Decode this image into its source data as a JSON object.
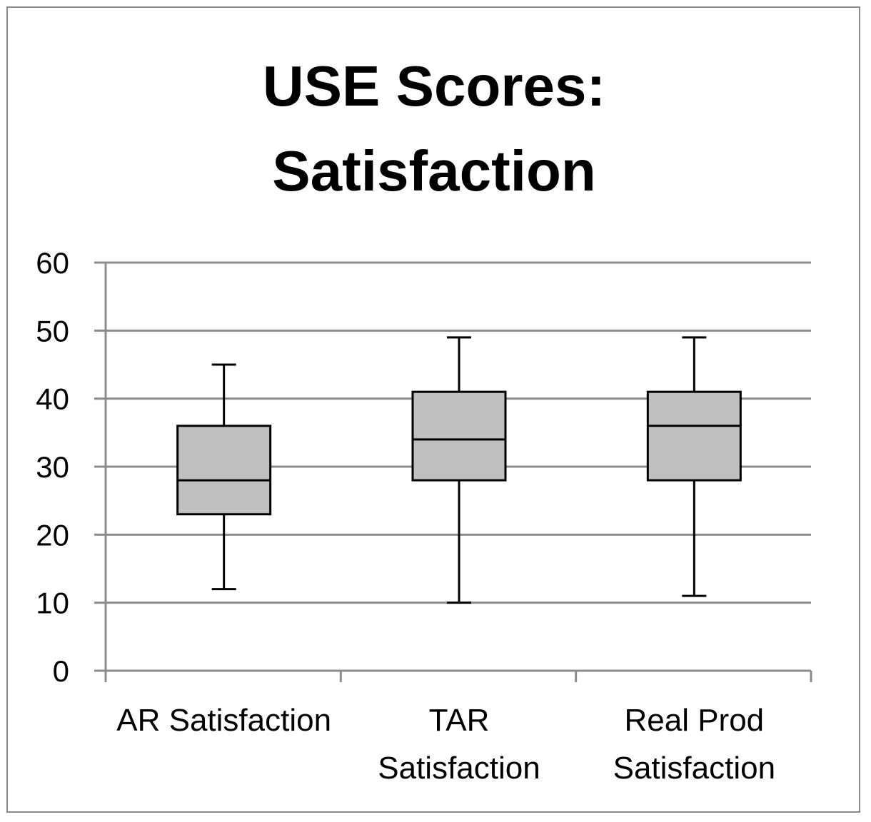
{
  "chart_data": {
    "type": "box",
    "title": [
      "USE Scores:",
      "Satisfaction"
    ],
    "xlabel": "",
    "ylabel": "",
    "ylim": [
      0,
      60
    ],
    "yticks": [
      0,
      10,
      20,
      30,
      40,
      50,
      60
    ],
    "grid": true,
    "legend": "none",
    "box_fill": "#c0c0c0",
    "series": [
      {
        "category": [
          "AR Satisfaction"
        ],
        "min": 12,
        "q1": 23,
        "median": 28,
        "q3": 36,
        "max": 45
      },
      {
        "category": [
          "TAR",
          "Satisfaction"
        ],
        "min": 10,
        "q1": 28,
        "median": 34,
        "q3": 41,
        "max": 49
      },
      {
        "category": [
          "Real Prod",
          "Satisfaction"
        ],
        "min": 11,
        "q1": 28,
        "median": 36,
        "q3": 41,
        "max": 49
      }
    ]
  }
}
